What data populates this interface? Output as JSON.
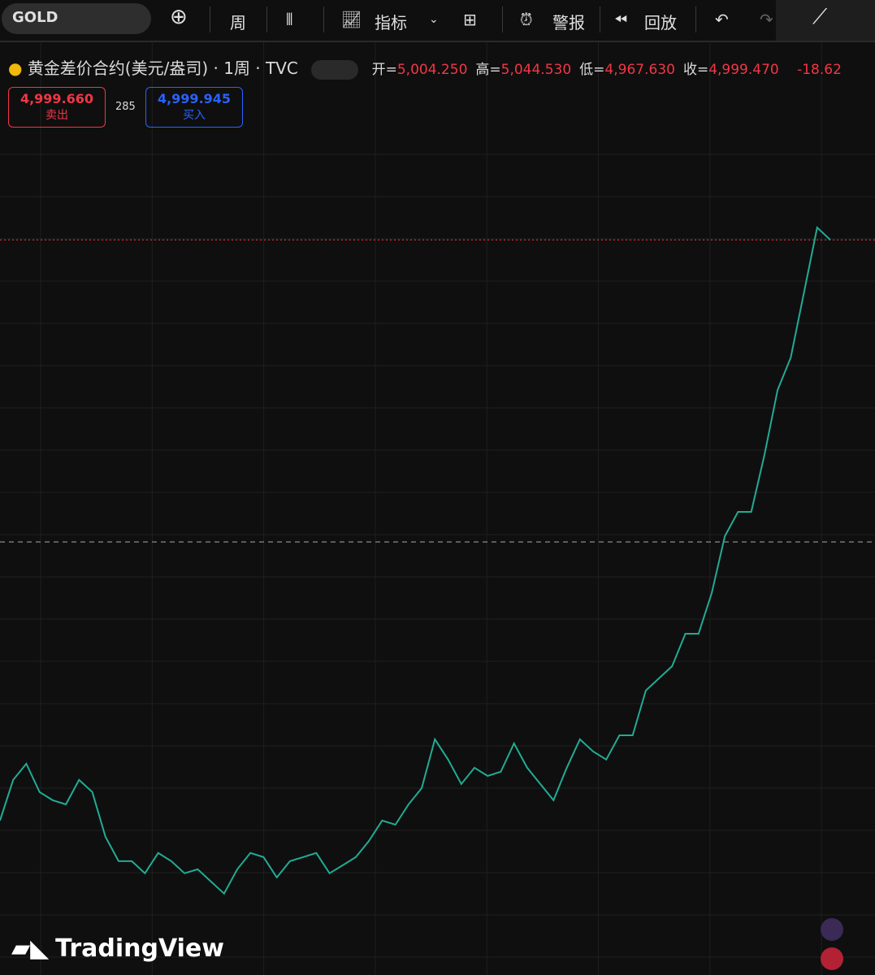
{
  "toolbar": {
    "symbol": "GOLD",
    "interval": "周",
    "indicators": "指标",
    "alerts": "警报",
    "replay": "回放"
  },
  "header": {
    "title": "黄金差价合约(美元/盎司) · 1周 · TVC",
    "ohlc": [
      {
        "label": "开=",
        "value": "5,004.250"
      },
      {
        "label": "高=",
        "value": "5,044.530"
      },
      {
        "label": "低=",
        "value": "4,967.630"
      },
      {
        "label": "收=",
        "value": "4,999.470"
      }
    ],
    "change": "-18.62"
  },
  "order": {
    "sell": {
      "price": "4,999.660",
      "label": "卖出"
    },
    "spread": "285",
    "buy": {
      "price": "4,999.945",
      "label": "买入"
    }
  },
  "brand": "TradingView",
  "chart_data": {
    "type": "line",
    "color": "#22ab94",
    "ylim": [
      583,
      6196
    ],
    "values": [
      1511,
      1755,
      1852,
      1682,
      1633,
      1608,
      1755,
      1682,
      1413,
      1267,
      1267,
      1194,
      1316,
      1267,
      1194,
      1218,
      1145,
      1072,
      1218,
      1316,
      1291,
      1169,
      1267,
      1291,
      1316,
      1194,
      1242,
      1291,
      1389,
      1511,
      1486,
      1608,
      1706,
      1999,
      1877,
      1730,
      1828,
      1779,
      1804,
      1974,
      1828,
      1730,
      1633,
      1828,
      1999,
      1926,
      1877,
      2023,
      2023,
      2292,
      2365,
      2438,
      2633,
      2633,
      2877,
      3219,
      3365,
      3365,
      3707,
      4097,
      4292,
      4683,
      5073,
      4999
    ]
  }
}
